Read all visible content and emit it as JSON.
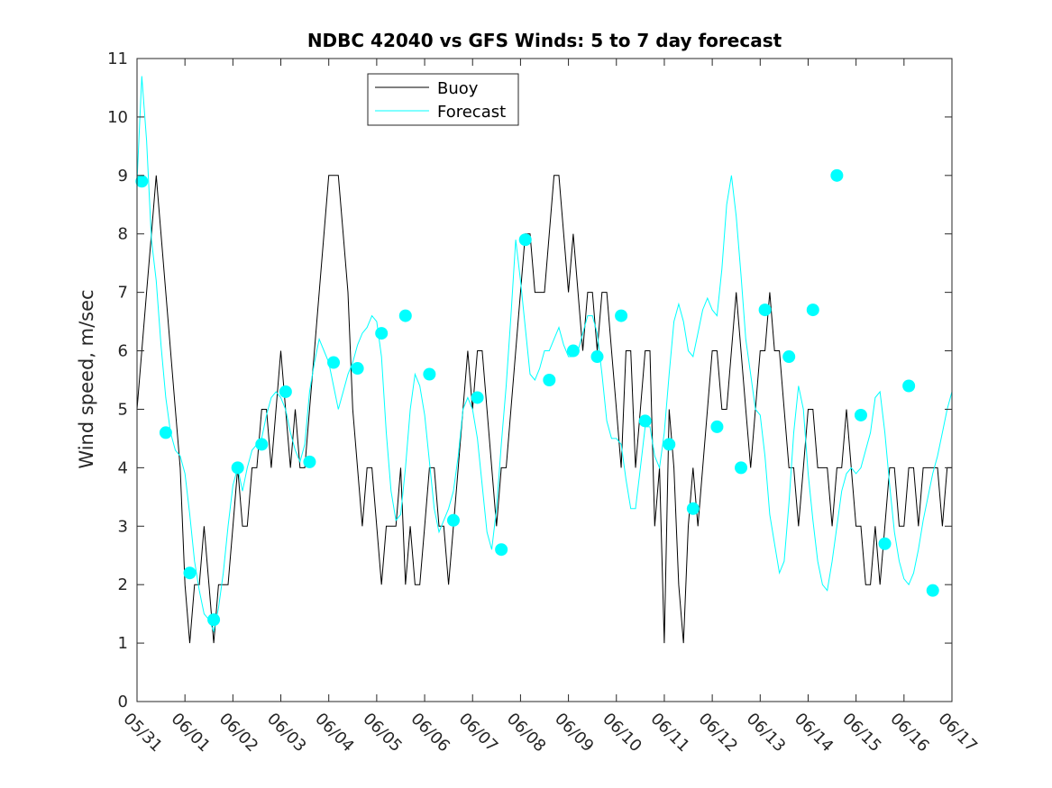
{
  "chart_data": {
    "type": "line",
    "title": "NDBC 42040 vs GFS Winds: 5 to 7 day forecast",
    "xlabel": "",
    "ylabel": "Wind speed, m/sec",
    "ylim": [
      0,
      11
    ],
    "yticks": [
      0,
      1,
      2,
      3,
      4,
      5,
      6,
      7,
      8,
      9,
      10,
      11
    ],
    "xlim": [
      0,
      17
    ],
    "xtick_labels": [
      "05/31",
      "06/01",
      "06/02",
      "06/03",
      "06/04",
      "06/05",
      "06/06",
      "06/07",
      "06/08",
      "06/09",
      "06/10",
      "06/11",
      "06/12",
      "06/13",
      "06/14",
      "06/15",
      "06/16",
      "06/17"
    ],
    "grid": false,
    "legend": {
      "position": "top-center",
      "entries": [
        "Buoy",
        "Forecast"
      ]
    },
    "colors": {
      "buoy": "#000000",
      "forecast": "#00FFFF",
      "marker": "#00FFFF"
    },
    "series": [
      {
        "name": "Buoy",
        "x": [
          0,
          0.1,
          0.2,
          0.3,
          0.4,
          0.5,
          0.6,
          0.7,
          0.8,
          0.9,
          1.0,
          1.1,
          1.2,
          1.3,
          1.4,
          1.5,
          1.6,
          1.7,
          1.8,
          1.9,
          2.0,
          2.1,
          2.2,
          2.3,
          2.4,
          2.5,
          2.6,
          2.7,
          2.8,
          2.9,
          3.0,
          3.1,
          3.2,
          3.3,
          3.4,
          3.5,
          3.6,
          3.7,
          3.8,
          3.9,
          4.0,
          4.1,
          4.2,
          4.3,
          4.4,
          4.5,
          4.6,
          4.7,
          4.8,
          4.9,
          5.0,
          5.1,
          5.2,
          5.3,
          5.4,
          5.5,
          5.6,
          5.7,
          5.8,
          5.9,
          6.0,
          6.1,
          6.2,
          6.3,
          6.4,
          6.5,
          6.6,
          6.7,
          6.8,
          6.9,
          7.0,
          7.1,
          7.2,
          7.3,
          7.4,
          7.5,
          7.6,
          7.7,
          7.8,
          7.9,
          8.0,
          8.1,
          8.2,
          8.3,
          8.4,
          8.5,
          8.6,
          8.7,
          8.8,
          8.9,
          9.0,
          9.1,
          9.2,
          9.3,
          9.4,
          9.5,
          9.6,
          9.7,
          9.8,
          9.9,
          10.0,
          10.1,
          10.2,
          10.3,
          10.4,
          10.5,
          10.6,
          10.7,
          10.8,
          10.9,
          11.0,
          11.1,
          11.2,
          11.3,
          11.4,
          11.5,
          11.6,
          11.7,
          11.8,
          11.9,
          12.0,
          12.1,
          12.2,
          12.3,
          12.4,
          12.5,
          12.6,
          12.7,
          12.8,
          12.9,
          13.0,
          13.1,
          13.2,
          13.3,
          13.4,
          13.5,
          13.6,
          13.7,
          13.8,
          13.9,
          14.0,
          14.1,
          14.2,
          14.3,
          14.4,
          14.5,
          14.6,
          14.7,
          14.8,
          14.9,
          15.0,
          15.1,
          15.2,
          15.3,
          15.4,
          15.5,
          15.6,
          15.7,
          15.8,
          15.9,
          16.0,
          16.1,
          16.2,
          16.3,
          16.4,
          16.5,
          16.6,
          16.7,
          16.8,
          16.9,
          17.0
        ],
        "values": [
          5,
          6,
          7,
          8,
          9,
          8,
          7,
          6,
          5,
          4,
          2,
          1,
          2,
          2,
          3,
          2,
          1,
          2,
          2,
          2,
          3,
          4,
          3,
          3,
          4,
          4,
          5,
          5,
          4,
          5,
          6,
          5,
          4,
          5,
          4,
          4,
          5,
          6,
          7,
          8,
          9,
          9,
          9,
          8,
          7,
          5,
          4,
          3,
          4,
          4,
          3,
          2,
          3,
          3,
          3,
          4,
          2,
          3,
          2,
          2,
          3,
          4,
          4,
          3,
          3,
          2,
          3,
          4,
          5,
          6,
          5,
          6,
          6,
          5,
          4,
          3,
          4,
          4,
          5,
          6,
          7,
          8,
          8,
          7,
          7,
          7,
          8,
          9,
          9,
          8,
          7,
          8,
          7,
          6,
          7,
          7,
          6,
          7,
          7,
          6,
          5,
          4,
          6,
          6,
          4,
          5,
          6,
          6,
          3,
          4,
          1,
          5,
          4,
          2,
          1,
          3,
          4,
          3,
          4,
          5,
          6,
          6,
          5,
          5,
          6,
          7,
          6,
          5,
          4,
          5,
          6,
          6,
          7,
          6,
          6,
          5,
          4,
          4,
          3,
          4,
          5,
          5,
          4,
          4,
          4,
          3,
          4,
          4,
          5,
          4,
          3,
          3,
          2,
          2,
          3,
          2,
          3,
          4,
          4,
          3,
          3,
          4,
          4,
          3,
          4,
          4,
          4,
          4,
          3,
          4,
          4
        ]
      },
      {
        "name": "Forecast",
        "x": [
          0,
          0.1,
          0.2,
          0.3,
          0.4,
          0.5,
          0.6,
          0.7,
          0.8,
          0.9,
          1.0,
          1.1,
          1.2,
          1.3,
          1.4,
          1.5,
          1.6,
          1.7,
          1.8,
          1.9,
          2.0,
          2.1,
          2.2,
          2.3,
          2.4,
          2.5,
          2.6,
          2.7,
          2.8,
          2.9,
          3.0,
          3.1,
          3.2,
          3.3,
          3.4,
          3.5,
          3.6,
          3.7,
          3.8,
          3.9,
          4.0,
          4.1,
          4.2,
          4.3,
          4.4,
          4.5,
          4.6,
          4.7,
          4.8,
          4.9,
          5.0,
          5.1,
          5.2,
          5.3,
          5.4,
          5.5,
          5.6,
          5.7,
          5.8,
          5.9,
          6.0,
          6.1,
          6.2,
          6.3,
          6.4,
          6.5,
          6.6,
          6.7,
          6.8,
          6.9,
          7.0,
          7.1,
          7.2,
          7.3,
          7.4,
          7.5,
          7.6,
          7.7,
          7.8,
          7.9,
          8.0,
          8.1,
          8.2,
          8.3,
          8.4,
          8.5,
          8.6,
          8.7,
          8.8,
          8.9,
          9.0,
          9.1,
          9.2,
          9.3,
          9.4,
          9.5,
          9.6,
          9.7,
          9.8,
          9.9,
          10.0,
          10.1,
          10.2,
          10.3,
          10.4,
          10.5,
          10.6,
          10.7,
          10.8,
          10.9,
          11.0,
          11.1,
          11.2,
          11.3,
          11.4,
          11.5,
          11.6,
          11.7,
          11.8,
          11.9,
          12.0,
          12.1,
          12.2,
          12.3,
          12.4,
          12.5,
          12.6,
          12.7,
          12.8,
          12.9,
          13.0,
          13.1,
          13.2,
          13.3,
          13.4,
          13.5,
          13.6,
          13.7,
          13.8,
          13.9,
          14.0,
          14.1,
          14.2,
          14.3,
          14.4,
          14.5,
          14.6,
          14.7,
          14.8,
          14.9,
          15.0,
          15.1,
          15.2,
          15.3,
          15.4,
          15.5,
          15.6,
          15.7,
          15.8,
          15.9,
          16.0,
          16.1,
          16.2,
          16.3,
          16.4,
          16.5,
          16.6,
          16.7,
          16.8,
          16.9,
          17.0
        ],
        "values": [
          8.9,
          10.7,
          9.6,
          7.9,
          7.2,
          6.1,
          5.2,
          4.6,
          4.3,
          4.2,
          3.9,
          3.2,
          2.4,
          1.9,
          1.5,
          1.4,
          1.2,
          1.6,
          2.2,
          3.0,
          3.7,
          4.0,
          3.6,
          4.0,
          4.3,
          4.4,
          4.5,
          4.9,
          5.2,
          5.3,
          5.2,
          5.0,
          4.6,
          4.3,
          4.1,
          4.4,
          5.3,
          5.8,
          6.2,
          6.0,
          5.8,
          5.4,
          5.0,
          5.3,
          5.6,
          5.8,
          6.1,
          6.3,
          6.4,
          6.6,
          6.5,
          5.9,
          4.6,
          3.6,
          3.1,
          3.2,
          4.0,
          5.0,
          5.6,
          5.4,
          4.9,
          4.1,
          3.3,
          2.9,
          3.1,
          3.3,
          3.6,
          4.2,
          5.0,
          5.2,
          5.0,
          4.5,
          3.7,
          2.9,
          2.6,
          3.3,
          4.4,
          5.4,
          6.6,
          7.9,
          7.2,
          6.4,
          5.6,
          5.5,
          5.7,
          6.0,
          6.0,
          6.2,
          6.4,
          6.1,
          5.9,
          5.9,
          6.0,
          6.3,
          6.6,
          6.6,
          6.3,
          5.6,
          4.8,
          4.5,
          4.5,
          4.4,
          3.8,
          3.3,
          3.3,
          4.0,
          4.7,
          4.7,
          4.2,
          4.0,
          4.6,
          5.6,
          6.5,
          6.8,
          6.5,
          6.0,
          5.9,
          6.3,
          6.7,
          6.9,
          6.7,
          6.6,
          7.4,
          8.5,
          9.0,
          8.3,
          7.3,
          6.2,
          5.6,
          5.0,
          4.9,
          4.2,
          3.2,
          2.7,
          2.2,
          2.4,
          3.4,
          4.6,
          5.4,
          5.0,
          3.9,
          3.1,
          2.4,
          2.0,
          1.9,
          2.4,
          3.0,
          3.6,
          3.9,
          4.0,
          3.9,
          4.0,
          4.3,
          4.6,
          5.2,
          5.3,
          4.6,
          3.7,
          2.9,
          2.4,
          2.1,
          2.0,
          2.2,
          2.6,
          3.1,
          3.5,
          3.9,
          4.2,
          4.6,
          5.0,
          5.3
        ]
      }
    ],
    "markers": {
      "name": "Forecast",
      "x": [
        0.1,
        0.6,
        1.1,
        1.6,
        2.1,
        2.6,
        3.1,
        3.6,
        4.1,
        4.6,
        5.1,
        5.6,
        6.1,
        6.6,
        7.1,
        7.6,
        8.1,
        8.6,
        9.1,
        9.6,
        10.1,
        10.6,
        11.1,
        11.6,
        12.1,
        12.6,
        13.1,
        13.6,
        14.1,
        14.6,
        15.1,
        15.6,
        16.1,
        16.6
      ],
      "values": [
        8.9,
        4.6,
        2.2,
        1.4,
        4.0,
        4.4,
        5.3,
        4.1,
        5.8,
        5.7,
        6.3,
        6.6,
        5.6,
        3.1,
        5.2,
        2.6,
        7.9,
        5.5,
        6.0,
        5.9,
        6.6,
        4.8,
        4.4,
        3.3,
        4.7,
        4.0,
        6.7,
        5.9,
        6.7,
        9.0,
        4.9,
        2.7,
        5.4,
        1.9
      ]
    }
  }
}
